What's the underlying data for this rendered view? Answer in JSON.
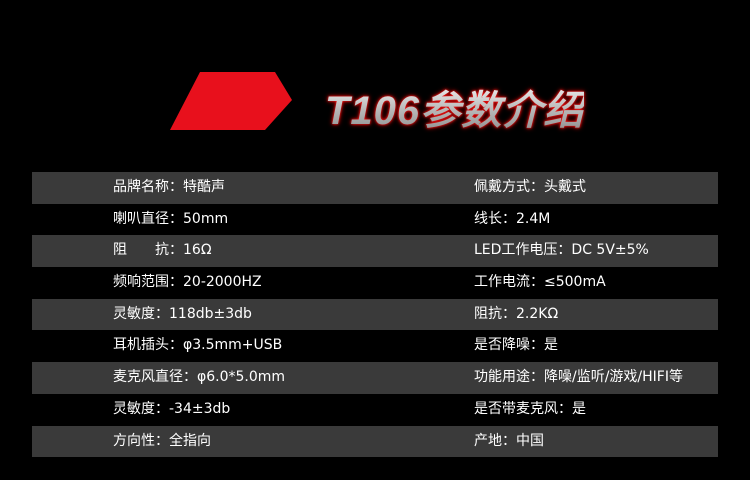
{
  "title": "T106参数介绍",
  "colors": {
    "accent": "#e8101c",
    "row_gray": "#3a3a3a",
    "row_dark": "#000000"
  },
  "specs": [
    {
      "left": "品牌名称：特酷声",
      "right": "佩戴方式：头戴式"
    },
    {
      "left": "喇叭直径：50mm",
      "right": "线长：2.4M"
    },
    {
      "left": "阻　　抗：16Ω",
      "right": "LED工作电压：DC 5V±5%"
    },
    {
      "left": "频响范围：20-2000HZ",
      "right": "工作电流：≤500mA"
    },
    {
      "left": "灵敏度：118db±3db",
      "right": "阻抗：2.2KΩ"
    },
    {
      "left": "耳机插头：φ3.5mm+USB",
      "right": "是否降噪：是"
    },
    {
      "left": "麦克风直径：φ6.0*5.0mm",
      "right": "功能用途：降噪/监听/游戏/HIFI等"
    },
    {
      "left": "灵敏度：-34±3db",
      "right": "是否带麦克风：是"
    },
    {
      "left": "方向性：全指向",
      "right": "产地：中国"
    }
  ]
}
